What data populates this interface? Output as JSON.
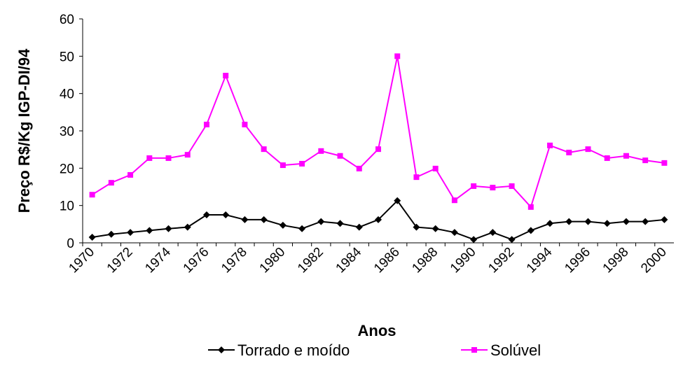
{
  "chart_data": {
    "type": "line",
    "x_label": "Anos",
    "y_label": "Preço R$/Kg IGP-DI/94",
    "categories": [
      "1970",
      null,
      "1972",
      null,
      "1974",
      null,
      "1976",
      null,
      "1978",
      null,
      "1980",
      null,
      "1982",
      null,
      "1984",
      null,
      "1986",
      null,
      "1988",
      null,
      "1990",
      null,
      "1992",
      null,
      "1994",
      null,
      "1996",
      null,
      "1998",
      null,
      "2000"
    ],
    "series": [
      {
        "name": "Torrado e moído",
        "color": "#000000",
        "marker": "diamond",
        "values": [
          1.5,
          2.3,
          2.8,
          3.3,
          3.8,
          4.2,
          7.5,
          7.5,
          6.2,
          6.2,
          4.7,
          3.8,
          5.7,
          5.2,
          4.2,
          6.2,
          11.3,
          4.2,
          3.8,
          2.8,
          0.9,
          2.8,
          0.9,
          3.3,
          5.2,
          5.7,
          5.7,
          5.2,
          5.7,
          5.7,
          6.2
        ]
      },
      {
        "name": "Solúvel",
        "color": "#ff00ff",
        "marker": "square",
        "values": [
          12.9,
          16.1,
          18.2,
          22.7,
          22.7,
          23.6,
          31.7,
          44.8,
          31.7,
          25.1,
          20.8,
          21.2,
          24.6,
          23.3,
          19.9,
          25.1,
          50,
          17.6,
          19.9,
          11.4,
          15.2,
          14.8,
          15.2,
          9.6,
          26.1,
          24.2,
          25.1,
          22.7,
          23.3,
          22.1,
          21.4
        ]
      }
    ],
    "ylim": [
      0,
      60
    ],
    "yticks": [
      0,
      10,
      20,
      30,
      40,
      50,
      60
    ],
    "grid": false,
    "legend": "bottom"
  }
}
